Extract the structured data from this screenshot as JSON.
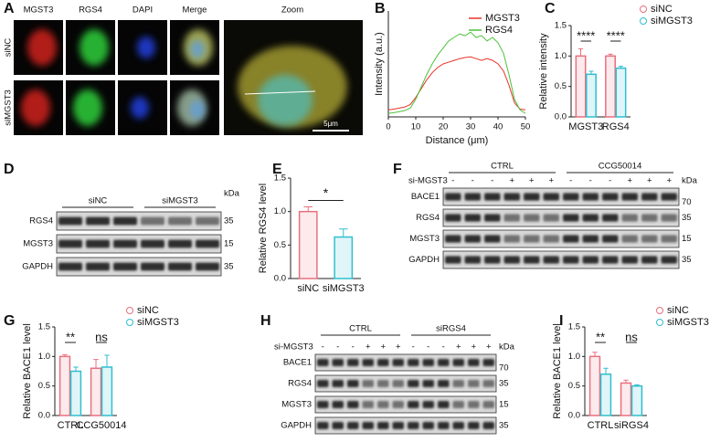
{
  "panel_letters": [
    "A",
    "B",
    "C",
    "D",
    "E",
    "F",
    "G",
    "H",
    "I"
  ],
  "panel_a": {
    "columns": [
      "MGST3",
      "RGS4",
      "DAPI",
      "Merge",
      "Zoom"
    ],
    "rows": [
      "siNC",
      "siMGST3"
    ],
    "scale_bar": "5μm"
  },
  "blot_d": {
    "groups": [
      "siNC",
      "siMGST3"
    ],
    "unit": "kDa",
    "bands": [
      {
        "name": "RGS4",
        "kda": 35
      },
      {
        "name": "MGST3",
        "kda": 15
      },
      {
        "name": "GAPDH",
        "kda": 35
      }
    ]
  },
  "blot_f": {
    "groups": [
      "CTRL",
      "CCG50014"
    ],
    "treatment": "si-MGST3",
    "signs": [
      "-",
      "-",
      "-",
      "+",
      "+",
      "+",
      "-",
      "-",
      "-",
      "+",
      "+",
      "+"
    ],
    "unit": "kDa",
    "bands": [
      {
        "name": "BACE1",
        "kda": 70
      },
      {
        "name": "RGS4",
        "kda": 35
      },
      {
        "name": "MGST3",
        "kda": 15
      },
      {
        "name": "GAPDH",
        "kda": 35
      }
    ]
  },
  "blot_h": {
    "groups": [
      "CTRL",
      "siRGS4"
    ],
    "treatment": "si-MGST3",
    "signs": [
      "-",
      "-",
      "-",
      "+",
      "+",
      "+",
      "-",
      "-",
      "-",
      "+",
      "+",
      "+"
    ],
    "unit": "kDa",
    "bands": [
      {
        "name": "BACE1",
        "kda": 70
      },
      {
        "name": "RGS4",
        "kda": 35
      },
      {
        "name": "MGST3",
        "kda": 15
      },
      {
        "name": "GAPDH",
        "kda": 35
      }
    ]
  },
  "chart_data": [
    {
      "type": "line",
      "xlabel": "Distance (μm)",
      "ylabel": "Intensity (a.u.)",
      "x": [
        0,
        2,
        4,
        6,
        8,
        10,
        12,
        14,
        16,
        18,
        20,
        22,
        24,
        26,
        28,
        30,
        32,
        34,
        36,
        38,
        40,
        42,
        44,
        46,
        48,
        50
      ],
      "xlim": [
        0,
        50
      ],
      "xticks": [
        0,
        10,
        20,
        30,
        40,
        50
      ],
      "ylim": [
        0,
        300
      ],
      "legend": "upper right",
      "series": [
        {
          "name": "MGST3",
          "color": "#e8332a",
          "values": [
            20,
            22,
            25,
            28,
            35,
            55,
            80,
            105,
            125,
            140,
            150,
            155,
            160,
            165,
            168,
            170,
            165,
            160,
            165,
            160,
            150,
            130,
            90,
            40,
            22,
            20
          ]
        },
        {
          "name": "RGS4",
          "color": "#4cc23a",
          "values": [
            10,
            12,
            15,
            18,
            25,
            50,
            85,
            120,
            150,
            175,
            195,
            215,
            225,
            235,
            230,
            240,
            225,
            230,
            215,
            225,
            210,
            180,
            120,
            50,
            20,
            10
          ]
        }
      ]
    },
    {
      "type": "bar",
      "ylabel": "Relative intensity",
      "categories": [
        "MGST3",
        "RGS4"
      ],
      "ylim": [
        0,
        1.5
      ],
      "yticks": [
        {
          "value": 0,
          "label": "0.0"
        },
        {
          "value": 0.5,
          "label": "0.5"
        },
        {
          "value": 1,
          "label": "1.0"
        },
        {
          "value": 1.5,
          "label": "1.5"
        }
      ],
      "series": [
        {
          "name": "siNC",
          "color": "#e8707e",
          "values": [
            1.0,
            1.0
          ],
          "errors": [
            0.12,
            0.03
          ]
        },
        {
          "name": "siMGST3",
          "color": "#2fbfcf",
          "values": [
            0.7,
            0.8
          ],
          "errors": [
            0.05,
            0.03
          ]
        }
      ],
      "annotations": [
        "****",
        "****"
      ]
    },
    {
      "type": "bar",
      "ylabel": "Relative RGS4 level",
      "categories": [
        "siNC",
        "siMGST3"
      ],
      "ylim": [
        0,
        1.5
      ],
      "yticks": [
        {
          "value": 0,
          "label": "0.0"
        },
        {
          "value": 0.5,
          "label": "0.5"
        },
        {
          "value": 1,
          "label": "1.0"
        },
        {
          "value": 1.5,
          "label": "1.5"
        }
      ],
      "values": [
        1.0,
        0.62
      ],
      "errors": [
        0.07,
        0.12
      ],
      "colors": [
        "#e8707e",
        "#2fbfcf"
      ],
      "annotations": [
        "*"
      ]
    },
    {
      "type": "bar",
      "ylabel": "Relative BACE1 level",
      "categories": [
        "CTRL",
        "CCG50014"
      ],
      "ylim": [
        0,
        1.5
      ],
      "yticks": [
        {
          "value": 0,
          "label": "0.0"
        },
        {
          "value": 0.5,
          "label": "0.5"
        },
        {
          "value": 1,
          "label": "1.0"
        },
        {
          "value": 1.5,
          "label": "1.5"
        }
      ],
      "series": [
        {
          "name": "siNC",
          "color": "#e8707e",
          "values": [
            1.0,
            0.8
          ],
          "errors": [
            0.03,
            0.15
          ]
        },
        {
          "name": "siMGST3",
          "color": "#2fbfcf",
          "values": [
            0.75,
            0.82
          ],
          "errors": [
            0.07,
            0.2
          ]
        }
      ],
      "annotations": [
        "**",
        "ns"
      ]
    },
    {
      "type": "bar",
      "ylabel": "Relative BACE1 level",
      "categories": [
        "CTRL",
        "siRGS4"
      ],
      "ylim": [
        0,
        1.5
      ],
      "yticks": [
        {
          "value": 0,
          "label": "0.0"
        },
        {
          "value": 0.5,
          "label": "0.5"
        },
        {
          "value": 1,
          "label": "1.0"
        },
        {
          "value": 1.5,
          "label": "1.5"
        }
      ],
      "series": [
        {
          "name": "siNC",
          "color": "#e8707e",
          "values": [
            1.0,
            0.55
          ],
          "errors": [
            0.07,
            0.05
          ]
        },
        {
          "name": "siMGST3",
          "color": "#2fbfcf",
          "values": [
            0.7,
            0.5
          ],
          "errors": [
            0.1,
            0.02
          ]
        }
      ],
      "annotations": [
        "**",
        "ns"
      ]
    }
  ]
}
